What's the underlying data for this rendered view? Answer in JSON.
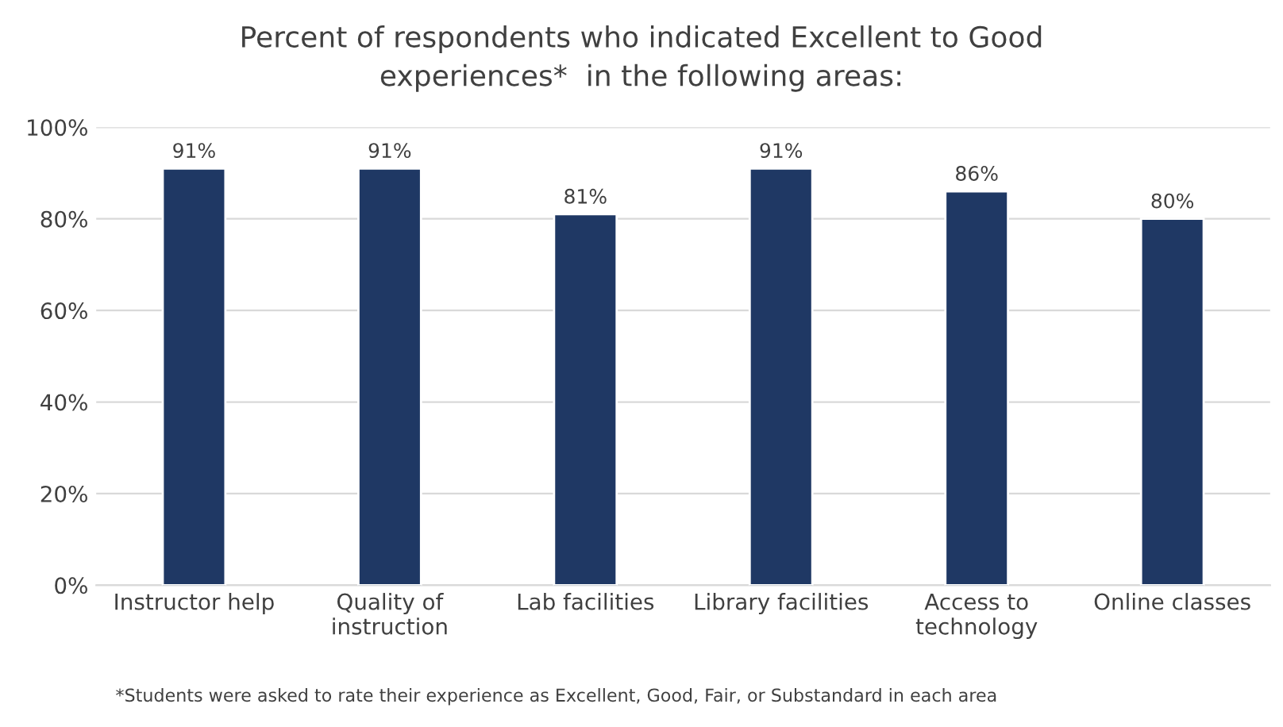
{
  "chart_data": {
    "type": "bar",
    "title": "Percent of respondents who indicated Excellent to Good\nexperiences*  in the following areas:",
    "categories": [
      "Instructor help",
      "Quality of\ninstruction",
      "Lab facilities",
      "Library facilities",
      "Access to\ntechnology",
      "Online classes"
    ],
    "values": [
      91,
      91,
      81,
      91,
      86,
      80
    ],
    "value_labels": [
      "91%",
      "91%",
      "81%",
      "91%",
      "86%",
      "80%"
    ],
    "color": "#1f3864",
    "ylim": [
      0,
      100
    ],
    "yticks": [
      {
        "value": 0,
        "label": "0%"
      },
      {
        "value": 20,
        "label": "20%"
      },
      {
        "value": 40,
        "label": "40%"
      },
      {
        "value": 60,
        "label": "60%"
      },
      {
        "value": 80,
        "label": "80%"
      },
      {
        "value": 100,
        "label": "100%"
      }
    ],
    "grid": "y",
    "annotations": [
      "*Students were asked to rate their experience as Excellent, Good, Fair, or Substandard in each area"
    ]
  }
}
